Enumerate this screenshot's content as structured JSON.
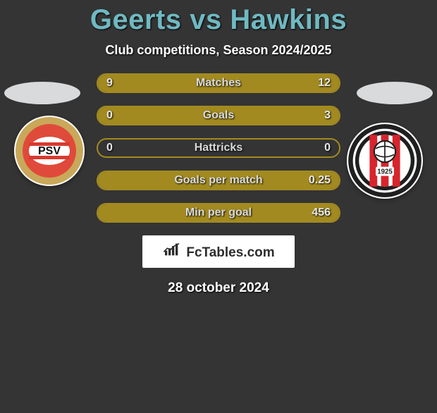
{
  "title": "Geerts vs Hawkins",
  "subtitle": "Club competitions, Season 2024/2025",
  "date": "28 october 2024",
  "colors": {
    "background": "#343434",
    "title": "#6fb9c2",
    "bar_border": "#a38a1f",
    "bar_fill": "#a28a20",
    "text_light": "#d9dadb",
    "text_value": "#e7e7e7",
    "ellipse": "#d9dadb"
  },
  "crest_left": {
    "name": "psv",
    "outer_gold": "#c9a85a",
    "inner_ring": "#e04a3a",
    "stripe_red": "#d83a2f",
    "stripe_white": "#ffffff",
    "text": "PSV",
    "text_color": "#111111"
  },
  "crest_right": {
    "name": "fc-emmen",
    "ring1": "#1f1f1f",
    "ring2": "#ffffff",
    "stripe_red": "#d8242c",
    "stripe_white": "#ffffff",
    "ball_lines": "#1f1f1f",
    "badge_text": "1925",
    "label_text": "FC EMMEN"
  },
  "brand": {
    "text": "FcTables.com",
    "icon_color": "#2d2d2d"
  },
  "bars": [
    {
      "label": "Matches",
      "left": "9",
      "right": "12",
      "left_w": 40,
      "right_w": 60
    },
    {
      "label": "Goals",
      "left": "0",
      "right": "3",
      "left_w": 0,
      "right_w": 100
    },
    {
      "label": "Hattricks",
      "left": "0",
      "right": "0",
      "left_w": 0,
      "right_w": 0
    },
    {
      "label": "Goals per match",
      "left": "",
      "right": "0.25",
      "left_w": 0,
      "right_w": 100
    },
    {
      "label": "Min per goal",
      "left": "",
      "right": "456",
      "left_w": 0,
      "right_w": 100
    }
  ]
}
